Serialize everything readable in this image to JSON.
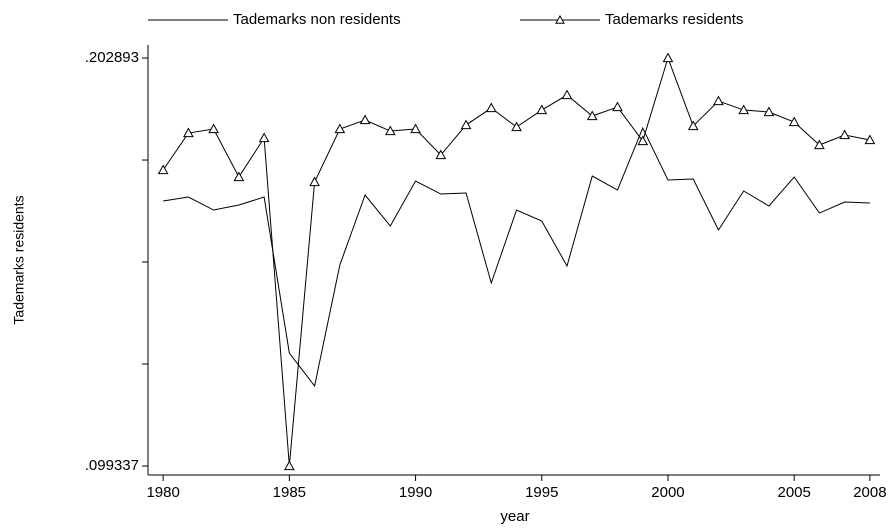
{
  "chart_data": {
    "type": "line",
    "ylabel": "Tademarks residents",
    "xlabel": "year",
    "x": [
      1980,
      1981,
      1982,
      1983,
      1984,
      1985,
      1986,
      1987,
      1988,
      1989,
      1990,
      1991,
      1992,
      1993,
      1994,
      1995,
      1996,
      1997,
      1998,
      1999,
      2000,
      2001,
      2002,
      2003,
      2004,
      2005,
      2006,
      2007,
      2008
    ],
    "series": [
      {
        "name": "Tademarks non residents",
        "color": "#000000",
        "marker": "none",
        "values": [
          0.1666,
          0.16761,
          0.16431,
          0.16558,
          0.16761,
          0.12802,
          0.11964,
          0.15035,
          0.16812,
          0.16025,
          0.17167,
          0.16837,
          0.16863,
          0.14579,
          0.16431,
          0.16152,
          0.1501,
          0.17294,
          0.16939,
          0.18512,
          0.17193,
          0.17218,
          0.15924,
          0.16914,
          0.16533,
          0.17269,
          0.16355,
          0.16634,
          0.16609
        ]
      },
      {
        "name": "Tademarks residents",
        "color": "#000000",
        "marker": "triangle",
        "values": [
          0.17447,
          0.18385,
          0.18487,
          0.17269,
          0.18259,
          0.09934,
          0.17142,
          0.18487,
          0.18716,
          0.18436,
          0.18487,
          0.17827,
          0.18588,
          0.1902,
          0.18538,
          0.18969,
          0.1935,
          0.18817,
          0.19045,
          0.18183,
          0.20289,
          0.18563,
          0.19198,
          0.18969,
          0.18919,
          0.18665,
          0.18081,
          0.18335,
          0.18208
        ]
      }
    ],
    "xlim": [
      1979.4,
      2008.4
    ],
    "xticks": [
      1980,
      1985,
      1990,
      1995,
      2000,
      2005,
      2008
    ],
    "ylim": [
      0.09705,
      0.2062
    ],
    "yticks": [
      {
        "value": 0.099337,
        "label": ".099337"
      },
      {
        "value": 0.202893,
        "label": ".202893"
      }
    ],
    "yminorticks": [
      0.125226,
      0.151115,
      0.177004
    ],
    "legend": "top",
    "grid": false
  }
}
